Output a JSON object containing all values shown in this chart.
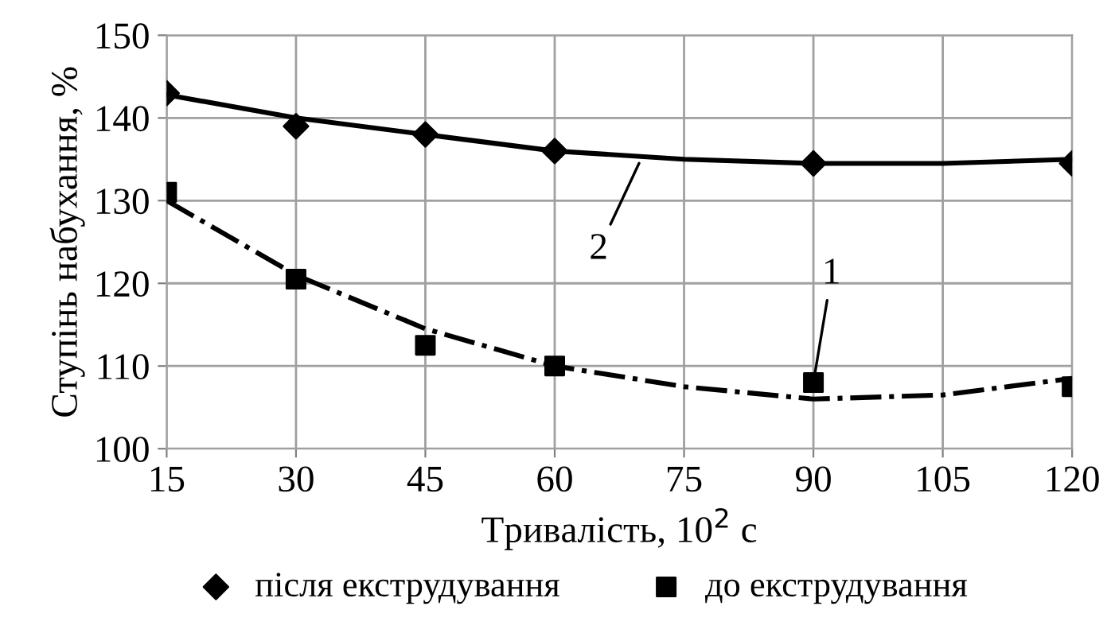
{
  "chart_data": {
    "type": "scatter",
    "xlabel": "Тривалість, 10$^{2}$ с",
    "ylabel": "Ступінь набухання, %",
    "x": [
      15,
      30,
      45,
      60,
      90,
      120
    ],
    "series": [
      {
        "name": "після екструдування",
        "color": "#000000",
        "marker": "diamond",
        "values": [
          143,
          139,
          138,
          136,
          134.5,
          134.5
        ]
      },
      {
        "name": "до екструдування",
        "color": "#000000",
        "marker": "square",
        "values": [
          131,
          120.5,
          112.5,
          110,
          108,
          107.5
        ]
      },
      {
        "type": "line",
        "color": "#000000",
        "line_style": "solid",
        "x": [
          15,
          30,
          45,
          60,
          75,
          90,
          105,
          120
        ],
        "values": [
          142.8,
          140,
          138,
          136,
          135,
          134.5,
          134.5,
          135
        ]
      },
      {
        "type": "line",
        "color": "#000000",
        "line_style": "dashdot",
        "x": [
          15,
          30,
          45,
          60,
          75,
          90,
          105,
          120
        ],
        "values": [
          130,
          121,
          114.5,
          110,
          107.5,
          106,
          106.5,
          108.5
        ]
      }
    ],
    "annotations": [
      {
        "text": "2",
        "x": 70,
        "y": 135
      },
      {
        "text": "1",
        "x": 90,
        "y": 108
      }
    ],
    "xlim": [
      15,
      120
    ],
    "xticks": [
      15,
      30,
      45,
      60,
      75,
      90,
      105,
      120
    ],
    "ylim": [
      100,
      150
    ],
    "yticks": [
      100,
      110,
      120,
      130,
      140,
      150
    ],
    "grid": true,
    "legend": "bottom"
  }
}
